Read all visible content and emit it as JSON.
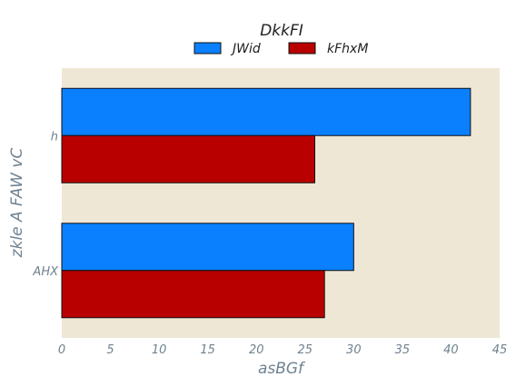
{
  "chart_data": {
    "type": "bar",
    "orientation": "horizontal",
    "title": "DkkFI",
    "xlabel": "asBGf",
    "ylabel": "zkle A FAW vC",
    "categories": [
      "AHX",
      "h"
    ],
    "series": [
      {
        "name": "JWid",
        "values": [
          30,
          42
        ],
        "color": "#0a80ff"
      },
      {
        "name": "kFhxM",
        "values": [
          27,
          26
        ],
        "color": "#b90000"
      }
    ],
    "xlim": [
      0,
      45
    ],
    "xticks": [
      "0",
      "5",
      "10",
      "15",
      "20",
      "25",
      "30",
      "35",
      "40",
      "45"
    ],
    "grid": false,
    "legend_position": "top-center",
    "plot_background": "#efe7d6"
  }
}
